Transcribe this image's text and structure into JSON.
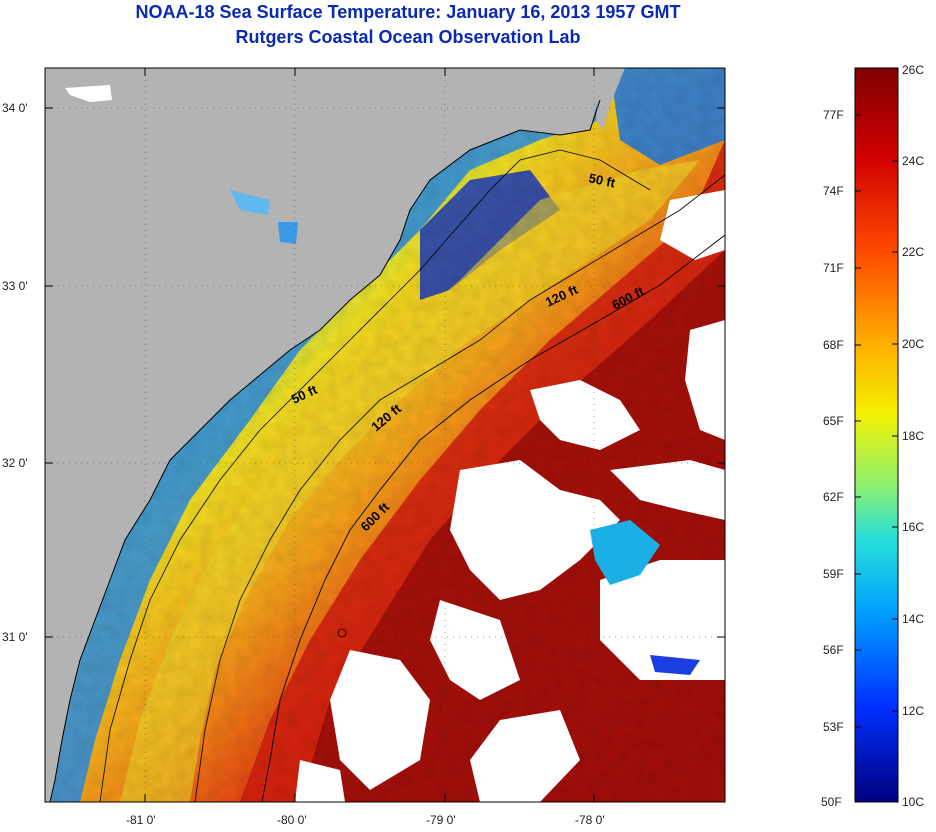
{
  "header": {
    "title": "NOAA-18 Sea Surface Temperature:  January 16, 2013 1957 GMT",
    "subtitle": "Rutgers Coastal Ocean Observation Lab"
  },
  "axes": {
    "lat_labels": [
      "34 0'",
      "33 0'",
      "32 0'",
      "31 0'"
    ],
    "lon_labels": [
      "-81 0'",
      "-80 0'",
      "-79 0'",
      "-78 0'"
    ]
  },
  "contours": {
    "labels": [
      "50 ft",
      "120 ft",
      "600 ft",
      "50 ft",
      "120 ft",
      "600 ft"
    ]
  },
  "colorbar": {
    "celsius": [
      "26C",
      "24C",
      "22C",
      "20C",
      "18C",
      "16C",
      "14C",
      "12C",
      "10C"
    ],
    "fahrenheit": [
      "77F",
      "74F",
      "71F",
      "68F",
      "65F",
      "62F",
      "59F",
      "56F",
      "53F",
      "50F"
    ]
  },
  "colors": {
    "land": "#b3b3b3",
    "cloud": "#ffffff",
    "title": "#0b2ab3"
  }
}
